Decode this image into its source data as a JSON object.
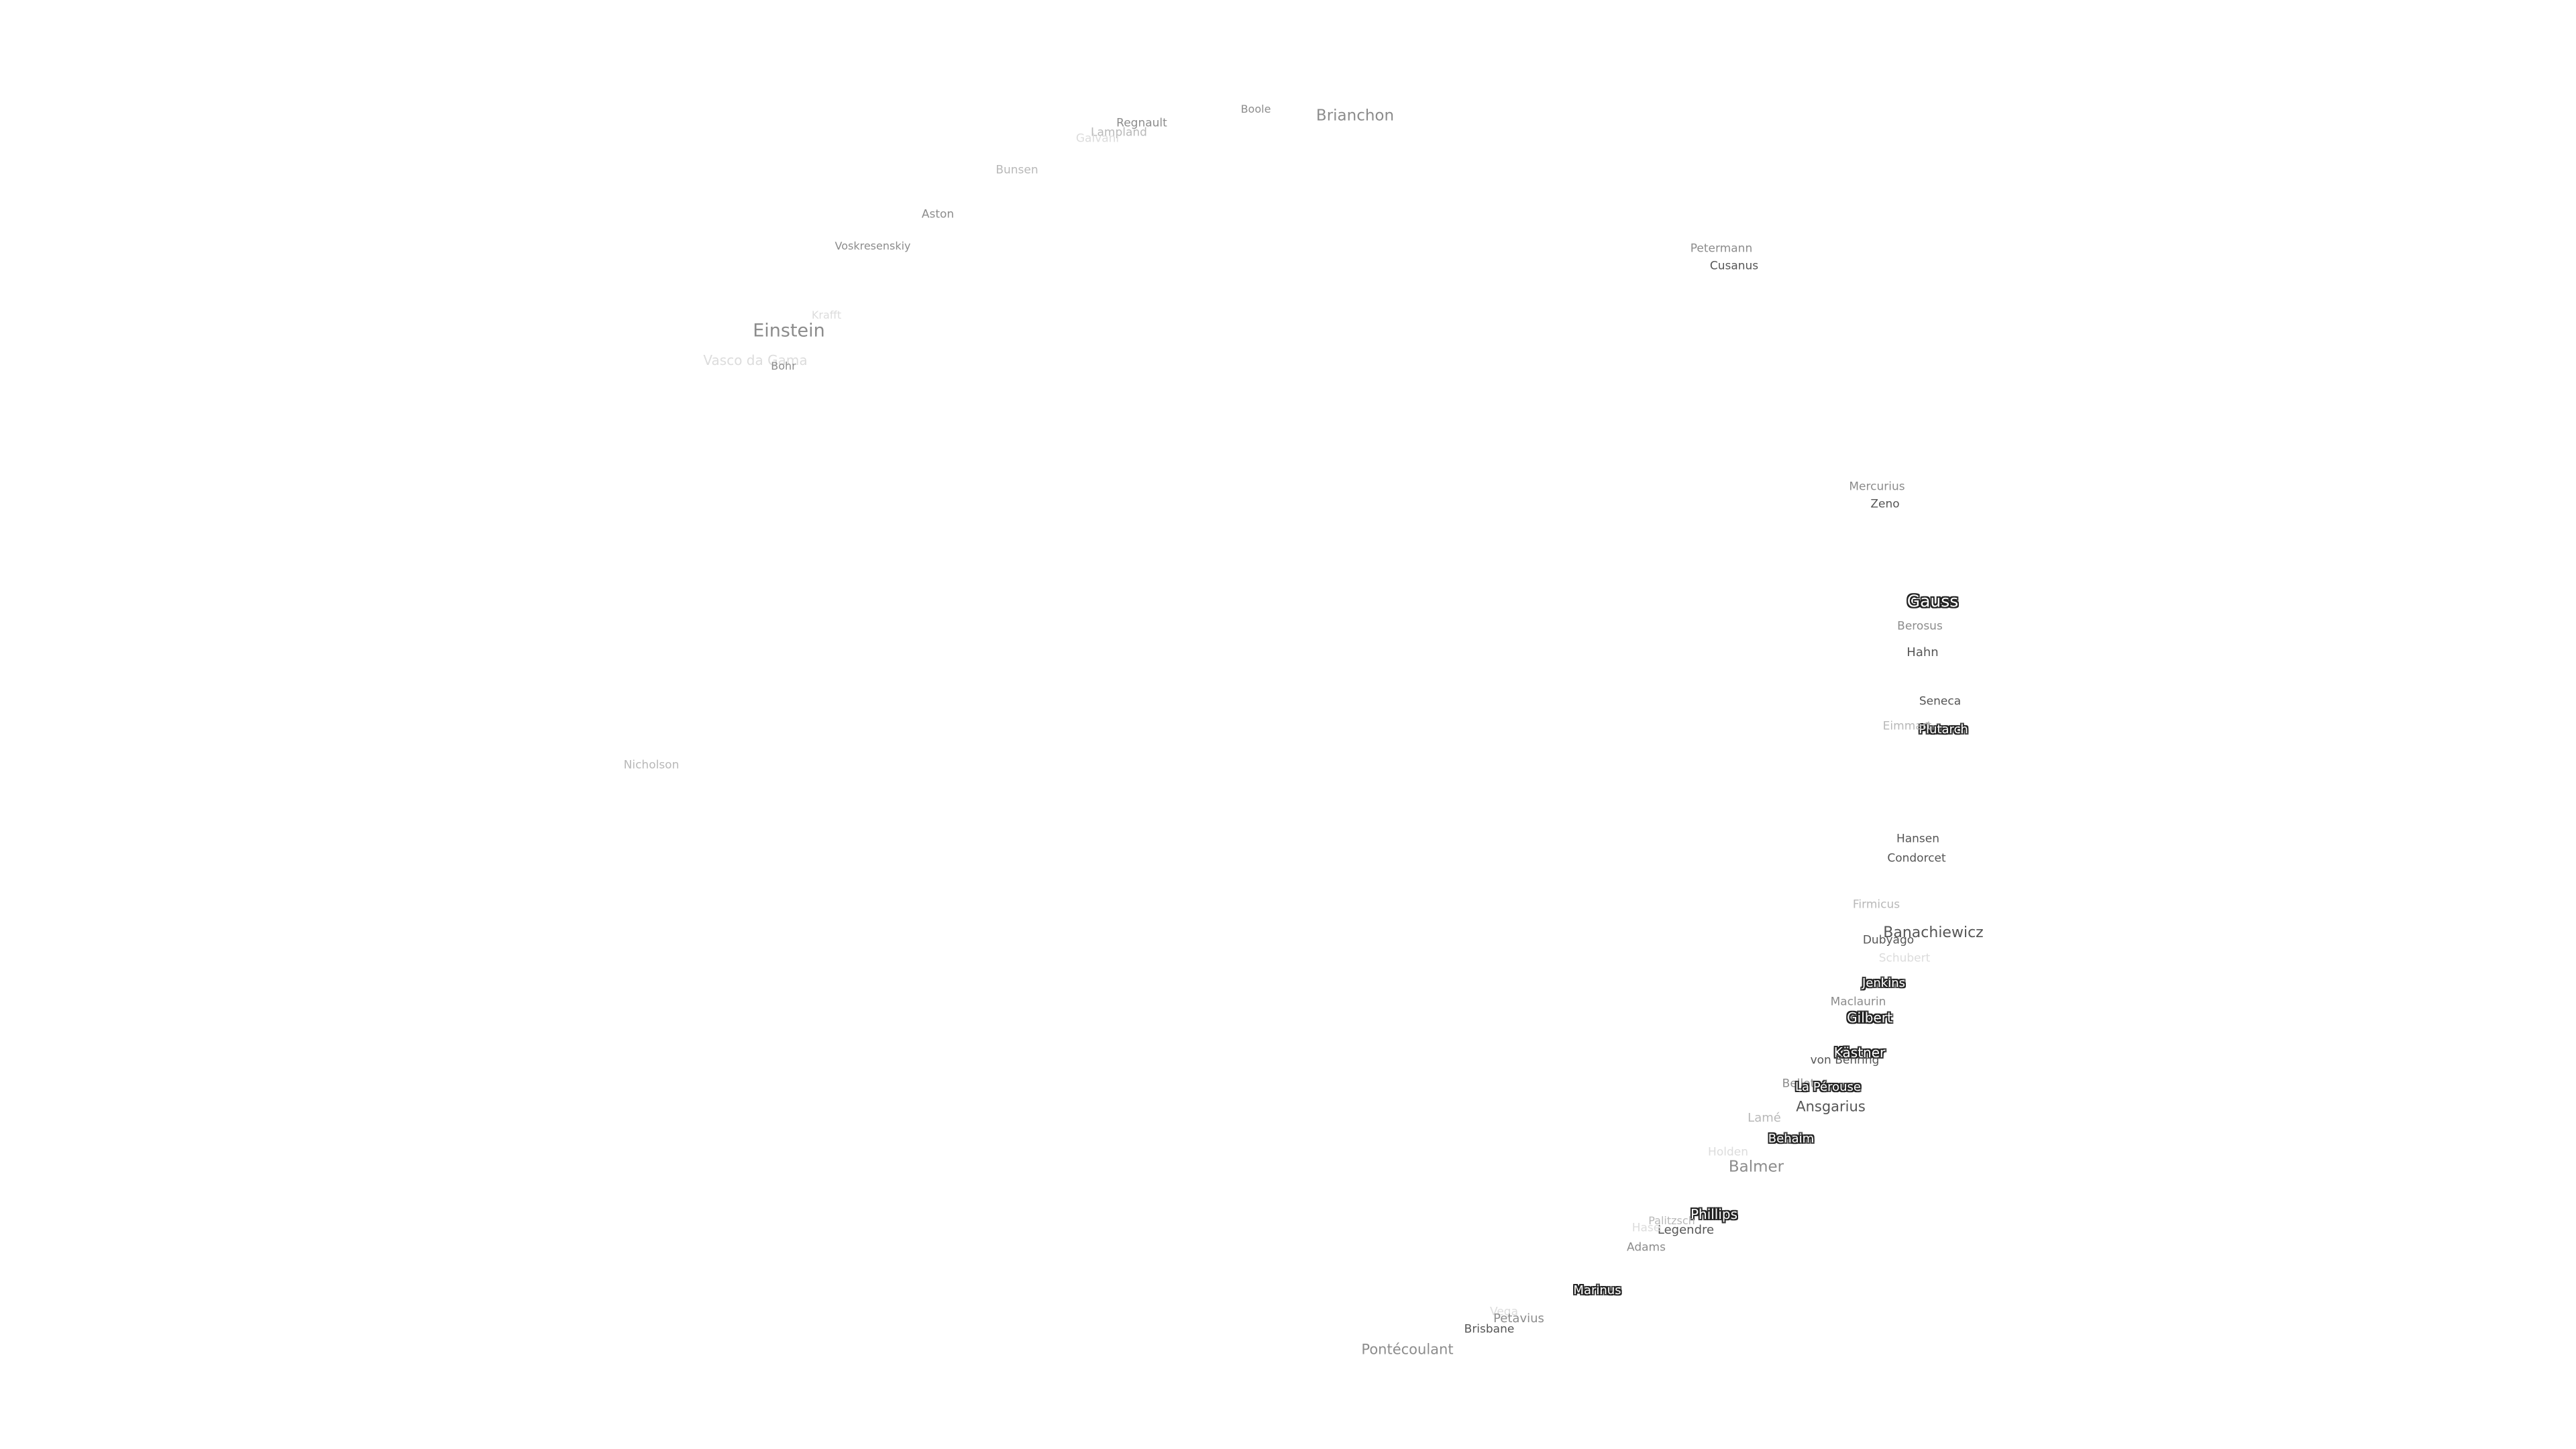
{
  "map": {
    "labels": [
      {
        "name": "Boole",
        "tone": "mid"
      },
      {
        "name": "Brianchon",
        "tone": "mid"
      },
      {
        "name": "Regnault",
        "tone": "mid"
      },
      {
        "name": "Lampland",
        "tone": "light"
      },
      {
        "name": "Galvani",
        "tone": "faint"
      },
      {
        "name": "Bunsen",
        "tone": "light"
      },
      {
        "name": "Aston",
        "tone": "mid"
      },
      {
        "name": "Voskresenskiy",
        "tone": "mid"
      },
      {
        "name": "Einstein",
        "tone": "mid"
      },
      {
        "name": "Vasco da Gama",
        "tone": "faint"
      },
      {
        "name": "Bohr",
        "tone": "mid"
      },
      {
        "name": "Krafft",
        "tone": "faint"
      },
      {
        "name": "Nicholson",
        "tone": "light"
      },
      {
        "name": "Petermann",
        "tone": "mid"
      },
      {
        "name": "Cusanus",
        "tone": "dark"
      },
      {
        "name": "Mercurius",
        "tone": "mid"
      },
      {
        "name": "Zeno",
        "tone": "dark"
      },
      {
        "name": "Gauss",
        "tone": "outline"
      },
      {
        "name": "Berosus",
        "tone": "mid"
      },
      {
        "name": "Hahn",
        "tone": "dark"
      },
      {
        "name": "Seneca",
        "tone": "dark"
      },
      {
        "name": "Plutarch",
        "tone": "outline"
      },
      {
        "name": "Eimmart",
        "tone": "light"
      },
      {
        "name": "Hansen",
        "tone": "dark"
      },
      {
        "name": "Condorcet",
        "tone": "dark"
      },
      {
        "name": "Firmicus",
        "tone": "light"
      },
      {
        "name": "Banachiewicz",
        "tone": "dark"
      },
      {
        "name": "Dubyago",
        "tone": "dark"
      },
      {
        "name": "Schubert",
        "tone": "faint"
      },
      {
        "name": "Jenkins",
        "tone": "outline"
      },
      {
        "name": "Maclaurin",
        "tone": "mid"
      },
      {
        "name": "Gilbert",
        "tone": "outline"
      },
      {
        "name": "Kästner",
        "tone": "outline"
      },
      {
        "name": "von Behring",
        "tone": "dark"
      },
      {
        "name": "Bellot",
        "tone": "mid"
      },
      {
        "name": "La Pérouse",
        "tone": "outline"
      },
      {
        "name": "Ansgarius",
        "tone": "dark"
      },
      {
        "name": "Lamé",
        "tone": "light"
      },
      {
        "name": "Behaim",
        "tone": "outline"
      },
      {
        "name": "Holden",
        "tone": "faint"
      },
      {
        "name": "Balmer",
        "tone": "mid"
      },
      {
        "name": "Phillips",
        "tone": "outline"
      },
      {
        "name": "Palitzsch",
        "tone": "light"
      },
      {
        "name": "Legendre",
        "tone": "dark"
      },
      {
        "name": "Hase",
        "tone": "faint"
      },
      {
        "name": "Adams",
        "tone": "mid"
      },
      {
        "name": "Marinus",
        "tone": "outline"
      },
      {
        "name": "Vega",
        "tone": "faint"
      },
      {
        "name": "Petavius",
        "tone": "mid"
      },
      {
        "name": "Brisbane",
        "tone": "dark"
      },
      {
        "name": "Pontécoulant",
        "tone": "mid"
      }
    ]
  }
}
